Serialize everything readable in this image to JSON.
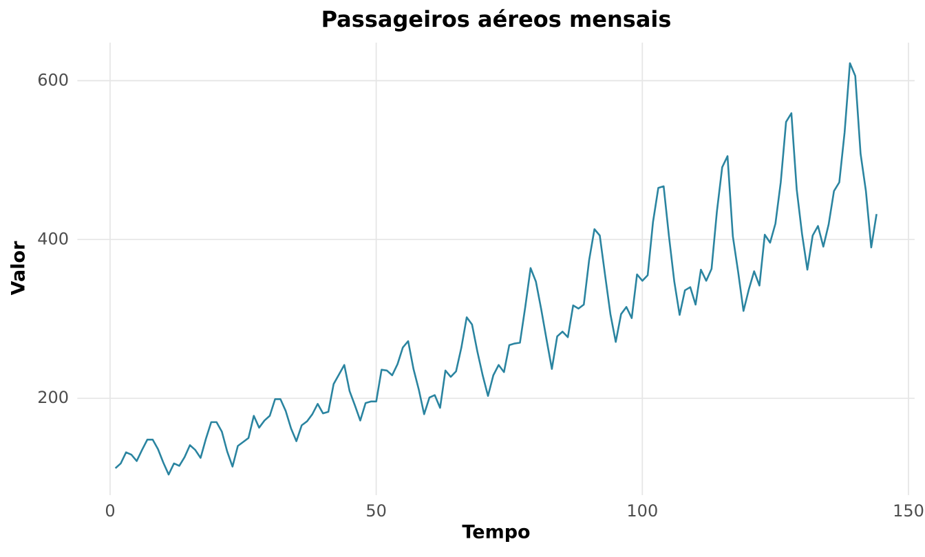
{
  "chart_data": {
    "type": "line",
    "title": "Passageiros aéreos mensais",
    "x_label": "Tempo",
    "y_label": "Valor",
    "x": [
      1,
      2,
      3,
      4,
      5,
      6,
      7,
      8,
      9,
      10,
      11,
      12,
      13,
      14,
      15,
      16,
      17,
      18,
      19,
      20,
      21,
      22,
      23,
      24,
      25,
      26,
      27,
      28,
      29,
      30,
      31,
      32,
      33,
      34,
      35,
      36,
      37,
      38,
      39,
      40,
      41,
      42,
      43,
      44,
      45,
      46,
      47,
      48,
      49,
      50,
      51,
      52,
      53,
      54,
      55,
      56,
      57,
      58,
      59,
      60,
      61,
      62,
      63,
      64,
      65,
      66,
      67,
      68,
      69,
      70,
      71,
      72,
      73,
      74,
      75,
      76,
      77,
      78,
      79,
      80,
      81,
      82,
      83,
      84,
      85,
      86,
      87,
      88,
      89,
      90,
      91,
      92,
      93,
      94,
      95,
      96,
      97,
      98,
      99,
      100,
      101,
      102,
      103,
      104,
      105,
      106,
      107,
      108,
      109,
      110,
      111,
      112,
      113,
      114,
      115,
      116,
      117,
      118,
      119,
      120,
      121,
      122,
      123,
      124,
      125,
      126,
      127,
      128,
      129,
      130,
      131,
      132,
      133,
      134,
      135,
      136,
      137,
      138,
      139,
      140,
      141,
      142,
      143,
      144
    ],
    "series": [
      {
        "name": "Valor",
        "color": "#2a84a0",
        "values": [
          112,
          118,
          132,
          129,
          121,
          135,
          148,
          148,
          136,
          119,
          104,
          118,
          115,
          126,
          141,
          135,
          125,
          149,
          170,
          170,
          158,
          133,
          114,
          140,
          145,
          150,
          178,
          163,
          172,
          178,
          199,
          199,
          184,
          162,
          146,
          166,
          171,
          180,
          193,
          181,
          183,
          218,
          230,
          242,
          209,
          191,
          172,
          194,
          196,
          196,
          236,
          235,
          229,
          243,
          264,
          272,
          237,
          211,
          180,
          201,
          204,
          188,
          235,
          227,
          234,
          264,
          302,
          293,
          259,
          229,
          203,
          229,
          242,
          233,
          267,
          269,
          270,
          315,
          364,
          347,
          312,
          274,
          237,
          278,
          284,
          277,
          317,
          313,
          318,
          374,
          413,
          405,
          355,
          306,
          271,
          306,
          315,
          301,
          356,
          348,
          355,
          422,
          465,
          467,
          404,
          347,
          305,
          336,
          340,
          318,
          362,
          348,
          363,
          435,
          491,
          505,
          404,
          359,
          310,
          337,
          360,
          342,
          406,
          396,
          420,
          472,
          548,
          559,
          463,
          407,
          362,
          405,
          417,
          391,
          419,
          461,
          472,
          535,
          622,
          606,
          508,
          461,
          390,
          432
        ]
      }
    ],
    "xlim": [
      -6.15,
      151.15
    ],
    "ylim": [
      78.1,
      647.9
    ],
    "xticks": [
      0,
      50,
      100,
      150
    ],
    "yticks": [
      200,
      400,
      600
    ],
    "grid": true
  }
}
